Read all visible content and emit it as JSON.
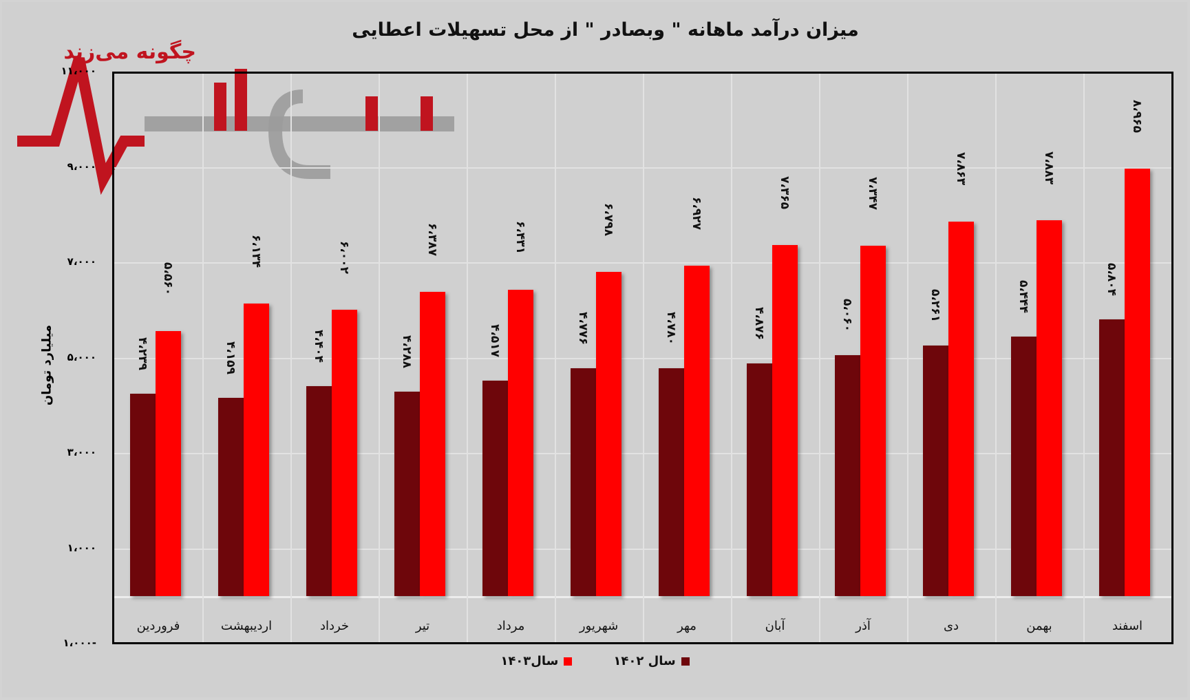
{
  "chart_title": "میزان درآمد ماهانه \" وبصادر \" از محل تسهیلات اعطایی",
  "watermark": {
    "tagline": "چگونه می‌زند",
    "brand": "نبض بازار"
  },
  "y_axis": {
    "label": "میلیارد تومان",
    "ticks": [
      {
        "value": 11000,
        "label": "۱۱،۰۰۰"
      },
      {
        "value": 9000,
        "label": "۹،۰۰۰"
      },
      {
        "value": 7000,
        "label": "۷،۰۰۰"
      },
      {
        "value": 5000,
        "label": "۵،۰۰۰"
      },
      {
        "value": 3000,
        "label": "۳،۰۰۰"
      },
      {
        "value": 1000,
        "label": "۱،۰۰۰"
      },
      {
        "value": -1000,
        "label": "۱،۰۰۰-"
      }
    ]
  },
  "legend": [
    {
      "label": "سال ۱۴۰۲",
      "color": "#6e060b"
    },
    {
      "label": "سال۱۴۰۳",
      "color": "#ff0000"
    }
  ],
  "categories": [
    {
      "label": "فروردین",
      "v1402": 4239,
      "v1403": 5560,
      "l1402": "۴،۲۳۹",
      "l1403": "۵،۵۶۰"
    },
    {
      "label": "اردیبهشت",
      "v1402": 4159,
      "v1403": 6134,
      "l1402": "۴،۱۵۹",
      "l1403": "۶،۱۳۴"
    },
    {
      "label": "خرداد",
      "v1402": 4404,
      "v1403": 6002,
      "l1402": "۴،۴۰۴",
      "l1403": "۶،۰۰۲"
    },
    {
      "label": "تیر",
      "v1402": 4288,
      "v1403": 6387,
      "l1402": "۴،۲۸۸",
      "l1403": "۶،۳۸۷"
    },
    {
      "label": "مرداد",
      "v1402": 4517,
      "v1403": 6431,
      "l1402": "۴،۵۱۷",
      "l1403": "۶،۴۳۱"
    },
    {
      "label": "شهریور",
      "v1402": 4776,
      "v1403": 6798,
      "l1402": "۴،۷۷۶",
      "l1403": "۶،۷۹۸"
    },
    {
      "label": "مهر",
      "v1402": 4780,
      "v1403": 6927,
      "l1402": "۴،۷۸۰",
      "l1403": "۶،۹۲۷"
    },
    {
      "label": "آبان",
      "v1402": 4876,
      "v1403": 7365,
      "l1402": "۴،۸۷۶",
      "l1403": "۷،۳۶۵"
    },
    {
      "label": "آذر",
      "v1402": 5060,
      "v1403": 7347,
      "l1402": "۵،۰۶۰",
      "l1403": "۷،۳۴۷"
    },
    {
      "label": "دی",
      "v1402": 5261,
      "v1403": 7863,
      "l1402": "۵،۲۶۱",
      "l1403": "۷،۸۶۳"
    },
    {
      "label": "بهمن",
      "v1402": 5444,
      "v1403": 7883,
      "l1402": "۵،۴۴۴",
      "l1403": "۷،۸۸۳"
    },
    {
      "label": "اسفند",
      "v1402": 5804,
      "v1403": 8965,
      "l1402": "۵،۸۰۴",
      "l1403": "۸،۹۶۵"
    }
  ],
  "chart_data": {
    "type": "bar",
    "title": "میزان درآمد ماهانه \" وبصادر \" از محل تسهیلات اعطایی",
    "xlabel": "",
    "ylabel": "میلیارد تومان",
    "ylim": [
      -1000,
      11000
    ],
    "yticks": [
      -1000,
      1000,
      3000,
      5000,
      7000,
      9000,
      11000
    ],
    "grid": true,
    "legend_position": "bottom",
    "categories": [
      "فروردین",
      "اردیبهشت",
      "خرداد",
      "تیر",
      "مرداد",
      "شهریور",
      "مهر",
      "آبان",
      "آذر",
      "دی",
      "بهمن",
      "اسفند"
    ],
    "series": [
      {
        "name": "سال ۱۴۰۲",
        "color": "#6e060b",
        "values": [
          4239,
          4159,
          4404,
          4288,
          4517,
          4776,
          4780,
          4876,
          5060,
          5261,
          5444,
          5804
        ]
      },
      {
        "name": "سال ۱۴۰۳",
        "color": "#ff0000",
        "values": [
          5560,
          6134,
          6002,
          6387,
          6431,
          6798,
          6927,
          7365,
          7347,
          7863,
          7883,
          8965
        ]
      }
    ]
  }
}
